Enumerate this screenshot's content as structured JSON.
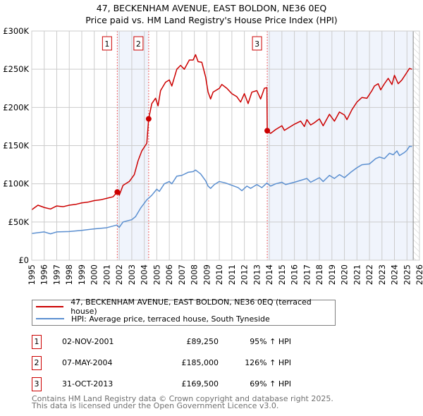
{
  "chart_data": {
    "type": "line",
    "title": "47, BECKENHAM AVENUE, EAST BOLDON, NE36 0EQ",
    "subtitle": "Price paid vs. HM Land Registry's House Price Index (HPI)",
    "xlim": [
      1995,
      2026
    ],
    "ylim": [
      0,
      300000
    ],
    "grid": true,
    "x_ticks": [
      "1995",
      "1996",
      "1997",
      "1998",
      "1999",
      "2000",
      "2001",
      "2002",
      "2003",
      "2004",
      "2005",
      "2006",
      "2007",
      "2008",
      "2009",
      "2010",
      "2011",
      "2012",
      "2013",
      "2014",
      "2015",
      "2016",
      "2017",
      "2018",
      "2019",
      "2020",
      "2021",
      "2022",
      "2023",
      "2024",
      "2025",
      "2026"
    ],
    "y_ticks": [
      {
        "v": 0,
        "label": "£0"
      },
      {
        "v": 50000,
        "label": "£50K"
      },
      {
        "v": 100000,
        "label": "£100K"
      },
      {
        "v": 150000,
        "label": "£150K"
      },
      {
        "v": 200000,
        "label": "£200K"
      },
      {
        "v": 250000,
        "label": "£250K"
      },
      {
        "v": 300000,
        "label": "£300K"
      }
    ],
    "shaded_ranges": [
      [
        2001.84,
        2004.35
      ],
      [
        2013.83,
        2025.5
      ]
    ],
    "forecast_hatch_from": 2025.5,
    "series": [
      {
        "name": "47, BECKENHAM AVENUE, EAST BOLDON, NE36 0EQ (terraced house)",
        "color": "#cc0000",
        "x": [
          1995,
          1995.5,
          1996,
          1996.5,
          1997,
          1997.5,
          1998,
          1998.5,
          1999,
          1999.5,
          2000,
          2000.5,
          2001,
          2001.5,
          2001.84,
          2002,
          2002.3,
          2002.8,
          2003.2,
          2003.5,
          2003.8,
          2004.2,
          2004.35,
          2004.6,
          2004.9,
          2005.1,
          2005.3,
          2005.7,
          2006,
          2006.2,
          2006.6,
          2006.9,
          2007.2,
          2007.6,
          2007.9,
          2008.1,
          2008.3,
          2008.6,
          2008.9,
          2009.1,
          2009.3,
          2009.5,
          2010,
          2010.2,
          2010.6,
          2011,
          2011.4,
          2011.7,
          2012,
          2012.3,
          2012.6,
          2013,
          2013.3,
          2013.6,
          2013.8,
          2013.83,
          2014.1,
          2014.5,
          2015,
          2015.2,
          2015.6,
          2016,
          2016.5,
          2016.8,
          2017,
          2017.3,
          2017.6,
          2018,
          2018.3,
          2018.8,
          2019.2,
          2019.6,
          2020,
          2020.2,
          2020.6,
          2021,
          2021.4,
          2021.8,
          2022.2,
          2022.4,
          2022.7,
          2022.9,
          2023.2,
          2023.5,
          2023.8,
          2024,
          2024.3,
          2024.6,
          2025,
          2025.2,
          2025.4
        ],
        "y": [
          66,
          72,
          69,
          67,
          71,
          70,
          72,
          73,
          75,
          76,
          78,
          79,
          81,
          83,
          89.25,
          85,
          98,
          103,
          112,
          130,
          143,
          153,
          185,
          205,
          212,
          202,
          222,
          233,
          236,
          228,
          250,
          255,
          250,
          262,
          262,
          269,
          260,
          259,
          240,
          220,
          211,
          220,
          225,
          230,
          225,
          218,
          214,
          207,
          218,
          205,
          220,
          222,
          211,
          225,
          226,
          169.5,
          166,
          171,
          176,
          170,
          174,
          178,
          182,
          175,
          184,
          177,
          180,
          185,
          176,
          191,
          182,
          194,
          190,
          184,
          197,
          207,
          213,
          212,
          222,
          228,
          231,
          223,
          231,
          238,
          230,
          242,
          231,
          236,
          246,
          251,
          250
        ],
        "y_unit": "thousand GBP"
      },
      {
        "name": "HPI: Average price, terraced house, South Tyneside",
        "color": "#5b8fd0",
        "x": [
          1995,
          1996,
          1996.5,
          1997,
          1998,
          1999,
          2000,
          2001,
          2001.8,
          2002,
          2002.3,
          2003,
          2003.3,
          2003.7,
          2004.2,
          2004.6,
          2005,
          2005.2,
          2005.6,
          2006,
          2006.2,
          2006.6,
          2007,
          2007.5,
          2007.9,
          2008.1,
          2008.5,
          2008.9,
          2009.1,
          2009.3,
          2009.6,
          2010,
          2010.5,
          2011,
          2011.5,
          2011.8,
          2012.2,
          2012.5,
          2013,
          2013.4,
          2013.8,
          2014.1,
          2014.5,
          2015,
          2015.3,
          2016,
          2016.6,
          2017,
          2017.3,
          2018,
          2018.3,
          2018.8,
          2019.2,
          2019.6,
          2020,
          2020.5,
          2021,
          2021.4,
          2022,
          2022.5,
          2022.8,
          2023.2,
          2023.6,
          2023.9,
          2024.2,
          2024.4,
          2024.8,
          2025,
          2025.2,
          2025.4
        ],
        "y": [
          35,
          37,
          34.5,
          37,
          37.5,
          39,
          41,
          42.5,
          46,
          43,
          50,
          53,
          57,
          68,
          79,
          85,
          93,
          90,
          100,
          103,
          100,
          110,
          111,
          115,
          116,
          118,
          113,
          104,
          97,
          94,
          99,
          103,
          101,
          98,
          95,
          91,
          97,
          94,
          99,
          95,
          101,
          97,
          100,
          102,
          99,
          102,
          105,
          107,
          102,
          108,
          103,
          111,
          107,
          112,
          108,
          115,
          121,
          125,
          126,
          133,
          135,
          133,
          140,
          138,
          143,
          137,
          141,
          144,
          149,
          149
        ],
        "y_unit": "thousand GBP"
      }
    ],
    "sales": [
      {
        "id": "1",
        "x": 2001.84,
        "price": 89250,
        "date": "02-NOV-2001",
        "price_label": "£89,250",
        "hpi_label": "95% ↑ HPI"
      },
      {
        "id": "2",
        "x": 2004.35,
        "price": 185000,
        "date": "07-MAY-2004",
        "price_label": "£185,000",
        "hpi_label": "126% ↑ HPI"
      },
      {
        "id": "3",
        "x": 2013.83,
        "price": 169500,
        "date": "31-OCT-2013",
        "price_label": "£169,500",
        "hpi_label": "69% ↑ HPI"
      }
    ]
  },
  "footer": {
    "line1": "Contains HM Land Registry data © Crown copyright and database right 2025.",
    "line2": "This data is licensed under the Open Government Licence v3.0."
  }
}
